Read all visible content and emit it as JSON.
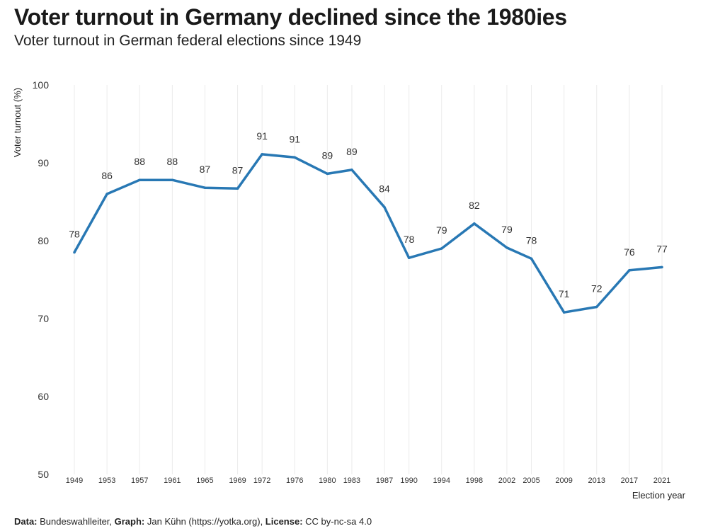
{
  "title": "Voter turnout in Germany declined since the 1980ies",
  "subtitle": "Voter turnout in German federal elections since 1949",
  "caption": {
    "data_label": "Data:",
    "data_value": " Bundeswahlleiter, ",
    "graph_label": "Graph:",
    "graph_value": " Jan Kühn (https://yotka.org), ",
    "license_label": "License:",
    "license_value": " CC by-nc-sa 4.0"
  },
  "chart_data": {
    "type": "line",
    "xlabel": "Election year",
    "ylabel": "Voter turnout (%)",
    "ylim": [
      50,
      100
    ],
    "yticks": [
      50,
      60,
      70,
      80,
      90,
      100
    ],
    "x": [
      1949,
      1953,
      1957,
      1961,
      1965,
      1969,
      1972,
      1976,
      1980,
      1983,
      1987,
      1990,
      1994,
      1998,
      2002,
      2005,
      2009,
      2013,
      2017,
      2021
    ],
    "x_labels": [
      "1949",
      "1953",
      "1957",
      "1961",
      "1965",
      "1969",
      "1972",
      "1976",
      "1980",
      "1983",
      "1987",
      "1990",
      "1994",
      "1998",
      "2002",
      "2005",
      "2009",
      "2013",
      "2017",
      "2021"
    ],
    "values": [
      78.5,
      86.0,
      87.8,
      87.8,
      86.8,
      86.7,
      91.1,
      90.7,
      88.6,
      89.1,
      84.3,
      77.8,
      79.0,
      82.2,
      79.1,
      77.7,
      70.8,
      71.5,
      76.2,
      76.6
    ],
    "data_labels": [
      "78",
      "86",
      "88",
      "88",
      "87",
      "87",
      "91",
      "91",
      "89",
      "89",
      "84",
      "78",
      "79",
      "82",
      "79",
      "78",
      "71",
      "72",
      "76",
      "77"
    ],
    "grid": "vertical",
    "line_color": "#2878b4",
    "grid_color": "#ebebeb"
  }
}
